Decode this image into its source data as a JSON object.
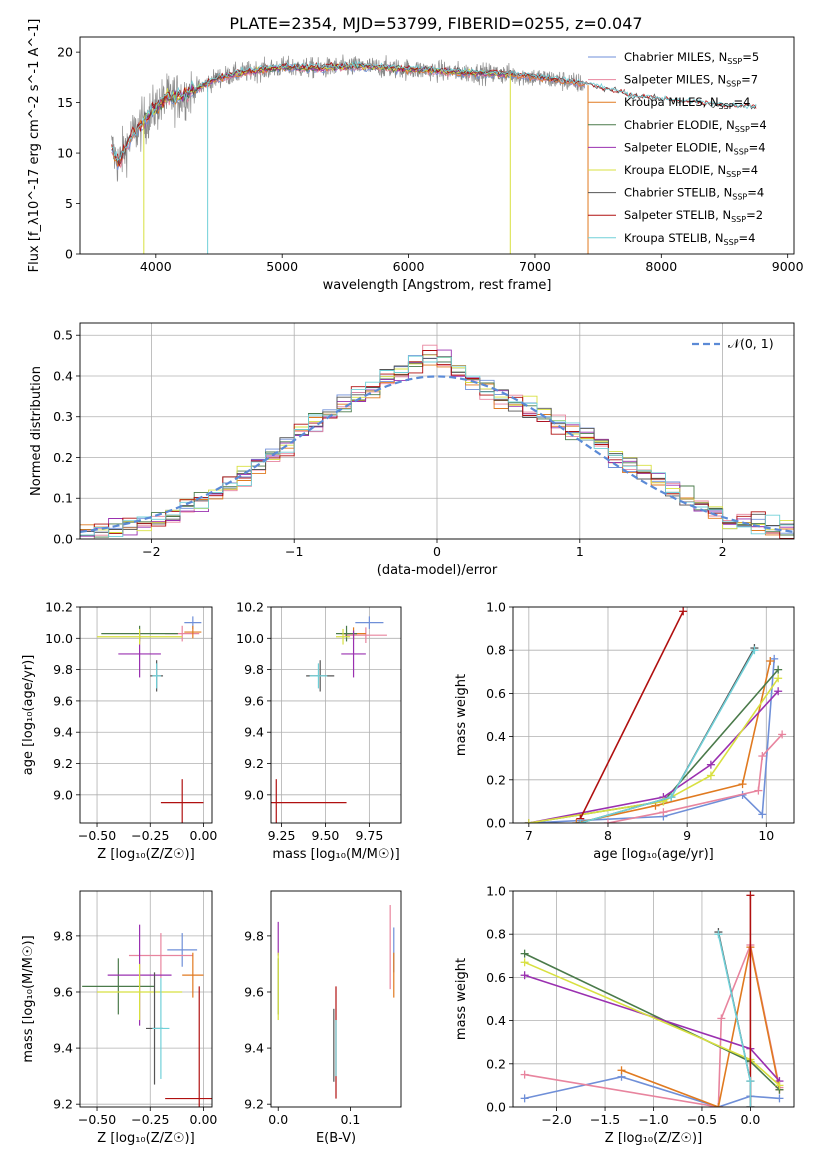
{
  "figure_title": "PLATE=2354, MJD=53799, FIBERID=0255, z=0.047",
  "colors": {
    "Chabrier MILES": "#6f8fd8",
    "Salpeter MILES": "#e8849e",
    "Kroupa MILES": "#e07a20",
    "Chabrier ELODIE": "#4a7a4a",
    "Salpeter ELODIE": "#9a30b0",
    "Kroupa ELODIE": "#d8e040",
    "Chabrier STELIB": "#555555",
    "Salpeter STELIB": "#b01010",
    "Kroupa STELIB": "#70d0d8",
    "normal": "#5b8ad6",
    "grid": "#b0b0b0"
  },
  "chart_data": [
    {
      "id": "spectrum",
      "type": "line",
      "title": "PLATE=2354, MJD=53799, FIBERID=0255, z=0.047",
      "xlabel": "wavelength [Angstrom, rest frame]",
      "ylabel": "Flux [f_λ10^-17 erg cm^-2 s^-1 A^-1]",
      "xlim": [
        3400,
        9050
      ],
      "ylim": [
        0,
        21.5
      ],
      "xticks": [
        4000,
        5000,
        6000,
        7000,
        8000,
        9000
      ],
      "yticks": [
        0,
        5,
        10,
        15,
        20
      ],
      "grid": false,
      "legend_position": "right",
      "legend": [
        {
          "name": "Chabrier MILES",
          "nssp": "5"
        },
        {
          "name": "Salpeter MILES",
          "nssp": "7"
        },
        {
          "name": "Kroupa MILES",
          "nssp": "4"
        },
        {
          "name": "Chabrier ELODIE",
          "nssp": "4"
        },
        {
          "name": "Salpeter ELODIE",
          "nssp": "4"
        },
        {
          "name": "Kroupa ELODIE",
          "nssp": "4"
        },
        {
          "name": "Chabrier STELIB",
          "nssp": "4"
        },
        {
          "name": "Salpeter STELIB",
          "nssp": "2"
        },
        {
          "name": "Kroupa STELIB",
          "nssp": "4"
        }
      ],
      "continuum": {
        "x": [
          3650,
          3700,
          3800,
          3900,
          4000,
          4100,
          4200,
          4300,
          4500,
          4700,
          5000,
          5300,
          5600,
          6000,
          6400,
          6800,
          7200,
          7400,
          7800,
          8200,
          8500,
          8760
        ],
        "y": [
          10.5,
          9,
          11.5,
          13,
          14.5,
          15.5,
          15.6,
          16.2,
          17.5,
          18,
          18.5,
          18.4,
          18.6,
          18.3,
          18,
          17.8,
          17.2,
          16.8,
          15.5,
          15,
          14.6,
          14.5
        ]
      },
      "data_extent": {
        "min": 3650,
        "max": 7400
      },
      "model_extents": {
        "Chabrier MILES": [
          3650,
          7400
        ],
        "Salpeter MILES": [
          3650,
          7400
        ],
        "Kroupa MILES": [
          3650,
          7400
        ],
        "Chabrier ELODIE": [
          3900,
          6800
        ],
        "Salpeter ELODIE": [
          3900,
          6800
        ],
        "Kroupa ELODIE": [
          3900,
          6800
        ],
        "Chabrier STELIB": [
          3650,
          8760
        ],
        "Salpeter STELIB": [
          3650,
          8760
        ],
        "Kroupa STELIB": [
          3650,
          8760
        ]
      },
      "drops": [
        {
          "x": 3905,
          "series": "Kroupa ELODIE"
        },
        {
          "x": 4410,
          "series": "Kroupa STELIB"
        },
        {
          "x": 6805,
          "series": "Kroupa ELODIE"
        },
        {
          "x": 7420,
          "series": "Kroupa MILES"
        }
      ]
    },
    {
      "id": "residuals",
      "type": "line",
      "xlabel": "(data-model)/error",
      "ylabel": "Normed distribution",
      "xlim": [
        -2.5,
        2.5
      ],
      "ylim": [
        0,
        0.53
      ],
      "xticks": [
        -2,
        -1,
        0,
        1,
        2
      ],
      "yticks": [
        0.0,
        0.1,
        0.2,
        0.3,
        0.4,
        0.5
      ],
      "grid": true,
      "legend_position": "top-right",
      "legend": [
        {
          "name": "𝒩(0, 1)",
          "style": "dashed"
        }
      ],
      "bin_width": 0.1,
      "histogram_envelope": {
        "x": [
          -2.5,
          -2.0,
          -1.5,
          -1.0,
          -0.5,
          -0.2,
          0.0,
          0.2,
          0.5,
          1.0,
          1.5,
          2.0,
          2.5
        ],
        "y": [
          0.015,
          0.035,
          0.12,
          0.25,
          0.36,
          0.43,
          0.45,
          0.4,
          0.34,
          0.26,
          0.15,
          0.05,
          0.02
        ]
      }
    },
    {
      "id": "age-vs-Z",
      "type": "scatter",
      "xlabel": "Z [log₁₀(Z/Z☉)]",
      "ylabel": "age [log₁₀(age/yr)]",
      "xlim": [
        -0.58,
        0.04
      ],
      "ylim": [
        8.82,
        10.2
      ],
      "xticks": [
        -0.5,
        -0.25,
        0.0
      ],
      "xtick_labels": [
        "−0.50",
        "−0.25",
        "0.00"
      ],
      "yticks": [
        9.0,
        9.2,
        9.4,
        9.6,
        9.8,
        10.0,
        10.2
      ],
      "grid": true,
      "points": [
        {
          "series": "Chabrier MILES",
          "x": -0.05,
          "y": 10.1,
          "xerr": 0.04,
          "yerr": 0.04
        },
        {
          "series": "Salpeter MILES",
          "x": -0.1,
          "y": 10.03,
          "xerr": 0.08,
          "yerr": 0.05
        },
        {
          "series": "Kroupa MILES",
          "x": -0.05,
          "y": 10.04,
          "xerr": 0.04,
          "yerr": 0.04
        },
        {
          "series": "Chabrier ELODIE",
          "x": -0.3,
          "y": 10.03,
          "xerr": 0.18,
          "yerr": 0.05
        },
        {
          "series": "Salpeter ELODIE",
          "x": -0.3,
          "y": 9.9,
          "xerr": 0.1,
          "yerr": 0.15
        },
        {
          "series": "Kroupa ELODIE",
          "x": -0.3,
          "y": 10.01,
          "xerr": 0.2,
          "yerr": 0.05
        },
        {
          "series": "Chabrier STELIB",
          "x": -0.22,
          "y": 9.76,
          "xerr": 0.03,
          "yerr": 0.1
        },
        {
          "series": "Salpeter STELIB",
          "x": -0.1,
          "y": 8.95,
          "xerr": 0.1,
          "yerr": 0.15
        },
        {
          "series": "Kroupa STELIB",
          "x": -0.22,
          "y": 9.76,
          "xerr": 0.02,
          "yerr": 0.08
        }
      ]
    },
    {
      "id": "age-vs-mass",
      "type": "scatter",
      "xlabel": "mass [log₁₀(M/M☉)]",
      "xlim": [
        9.19,
        9.93
      ],
      "ylim": [
        8.82,
        10.2
      ],
      "xticks": [
        9.25,
        9.5,
        9.75
      ],
      "yticks": [
        9.0,
        9.2,
        9.4,
        9.6,
        9.8,
        10.0,
        10.2
      ],
      "grid": true,
      "points": [
        {
          "series": "Chabrier MILES",
          "x": 9.75,
          "y": 10.1,
          "xerr": 0.08,
          "yerr": 0.04
        },
        {
          "series": "Salpeter MILES",
          "x": 9.73,
          "y": 10.02,
          "xerr": 0.12,
          "yerr": 0.05
        },
        {
          "series": "Kroupa MILES",
          "x": 9.66,
          "y": 10.03,
          "xerr": 0.07,
          "yerr": 0.04
        },
        {
          "series": "Chabrier ELODIE",
          "x": 9.62,
          "y": 10.03,
          "xerr": 0.06,
          "yerr": 0.05
        },
        {
          "series": "Salpeter ELODIE",
          "x": 9.66,
          "y": 9.9,
          "xerr": 0.07,
          "yerr": 0.15
        },
        {
          "series": "Kroupa ELODIE",
          "x": 9.6,
          "y": 10.01,
          "xerr": 0.04,
          "yerr": 0.05
        },
        {
          "series": "Chabrier STELIB",
          "x": 9.47,
          "y": 9.76,
          "xerr": 0.08,
          "yerr": 0.1
        },
        {
          "series": "Salpeter STELIB",
          "x": 9.22,
          "y": 8.95,
          "xerr": 0.4,
          "yerr": 0.15
        },
        {
          "series": "Kroupa STELIB",
          "x": 9.46,
          "y": 9.76,
          "xerr": 0.05,
          "yerr": 0.08
        }
      ]
    },
    {
      "id": "weight-vs-age",
      "type": "line",
      "xlabel": "age [log₁₀(age/yr)]",
      "ylabel": "mass weight",
      "xlim": [
        6.8,
        10.35
      ],
      "ylim": [
        0,
        1.0
      ],
      "xticks": [
        7,
        8,
        9,
        10
      ],
      "yticks": [
        0.0,
        0.2,
        0.4,
        0.6,
        0.8,
        1.0
      ],
      "grid": true,
      "series": [
        {
          "name": "Chabrier MILES",
          "x": [
            7.0,
            8.7,
            9.7,
            9.95,
            10.1
          ],
          "y": [
            0.0,
            0.03,
            0.13,
            0.04,
            0.76
          ]
        },
        {
          "name": "Salpeter MILES",
          "x": [
            8.0,
            8.7,
            9.9,
            9.95,
            10.2
          ],
          "y": [
            0.0,
            0.05,
            0.15,
            0.31,
            0.41
          ]
        },
        {
          "name": "Kroupa MILES",
          "x": [
            7.6,
            8.6,
            9.7,
            10.05
          ],
          "y": [
            0.0,
            0.08,
            0.18,
            0.75
          ]
        },
        {
          "name": "Chabrier ELODIE",
          "x": [
            7.0,
            8.7,
            10.15
          ],
          "y": [
            0.0,
            0.1,
            0.71
          ]
        },
        {
          "name": "Salpeter ELODIE",
          "x": [
            7.0,
            8.7,
            9.3,
            10.15
          ],
          "y": [
            0.0,
            0.12,
            0.27,
            0.61
          ]
        },
        {
          "name": "Kroupa ELODIE",
          "x": [
            7.0,
            8.7,
            9.3,
            10.15
          ],
          "y": [
            0.0,
            0.1,
            0.22,
            0.67
          ]
        },
        {
          "name": "Chabrier STELIB",
          "x": [
            7.65,
            8.8,
            9.85
          ],
          "y": [
            0.0,
            0.12,
            0.81
          ]
        },
        {
          "name": "Salpeter STELIB",
          "x": [
            7.65,
            8.95
          ],
          "y": [
            0.02,
            0.98
          ]
        },
        {
          "name": "Kroupa STELIB",
          "x": [
            7.65,
            8.8,
            9.85
          ],
          "y": [
            0.0,
            0.12,
            0.8
          ]
        }
      ]
    },
    {
      "id": "mass-vs-Z",
      "type": "scatter",
      "xlabel": "Z [log₁₀(Z/Z☉)]",
      "ylabel": "mass [log₁₀(M/M☉)]",
      "xlim": [
        -0.58,
        0.04
      ],
      "ylim": [
        9.19,
        9.96
      ],
      "xticks": [
        -0.5,
        -0.25,
        0.0
      ],
      "xtick_labels": [
        "−0.50",
        "−0.25",
        "0.00"
      ],
      "yticks": [
        9.2,
        9.4,
        9.6,
        9.8
      ],
      "grid": true,
      "points": [
        {
          "series": "Chabrier MILES",
          "x": -0.1,
          "y": 9.75,
          "xerr": 0.07,
          "yerr": 0.06
        },
        {
          "series": "Salpeter MILES",
          "x": -0.2,
          "y": 9.73,
          "xerr": 0.15,
          "yerr": 0.08
        },
        {
          "series": "Kroupa MILES",
          "x": -0.05,
          "y": 9.66,
          "xerr": 0.05,
          "yerr": 0.08
        },
        {
          "series": "Chabrier ELODIE",
          "x": -0.4,
          "y": 9.62,
          "xerr": 0.17,
          "yerr": 0.1
        },
        {
          "series": "Salpeter ELODIE",
          "x": -0.3,
          "y": 9.66,
          "xerr": 0.15,
          "yerr": 0.18
        },
        {
          "series": "Kroupa ELODIE",
          "x": -0.3,
          "y": 9.6,
          "xerr": 0.2,
          "yerr": 0.1
        },
        {
          "series": "Chabrier STELIB",
          "x": -0.23,
          "y": 9.47,
          "xerr": 0.04,
          "yerr": 0.2
        },
        {
          "series": "Salpeter STELIB",
          "x": -0.02,
          "y": 9.22,
          "xerr": 0.16,
          "yerr": 0.4
        },
        {
          "series": "Kroupa STELIB",
          "x": -0.2,
          "y": 9.47,
          "xerr": 0.04,
          "yerr": 0.18
        }
      ]
    },
    {
      "id": "mass-vs-EBV",
      "type": "scatter",
      "xlabel": "E(B-V)",
      "xlim": [
        -0.01,
        0.17
      ],
      "ylim": [
        9.19,
        9.96
      ],
      "xticks": [
        0.0,
        0.1
      ],
      "xtick_labels": [
        "0.0",
        "0.1"
      ],
      "yticks": [
        9.2,
        9.4,
        9.6,
        9.8
      ],
      "grid": false,
      "points": [
        {
          "series": "Chabrier MILES",
          "x": 0.16,
          "y": 9.75,
          "xerr": 0,
          "yerr": 0.08
        },
        {
          "series": "Salpeter MILES",
          "x": 0.155,
          "y": 9.76,
          "xerr": 0,
          "yerr": 0.15
        },
        {
          "series": "Kroupa MILES",
          "x": 0.16,
          "y": 9.66,
          "xerr": 0,
          "yerr": 0.08
        },
        {
          "series": "Chabrier ELODIE",
          "x": 0.0,
          "y": 9.62,
          "xerr": 0,
          "yerr": 0.1
        },
        {
          "series": "Salpeter ELODIE",
          "x": 0.0,
          "y": 9.79,
          "xerr": 0,
          "yerr": 0.06
        },
        {
          "series": "Kroupa ELODIE",
          "x": 0.0,
          "y": 9.62,
          "xerr": 0,
          "yerr": 0.12
        },
        {
          "series": "Chabrier STELIB",
          "x": 0.077,
          "y": 9.41,
          "xerr": 0,
          "yerr": 0.13
        },
        {
          "series": "Salpeter STELIB",
          "x": 0.08,
          "y": 9.42,
          "xerr": 0,
          "yerr": 0.2
        },
        {
          "series": "Kroupa STELIB",
          "x": 0.08,
          "y": 9.4,
          "xerr": 0,
          "yerr": 0.1
        }
      ]
    },
    {
      "id": "weight-vs-Z",
      "type": "line",
      "xlabel": "Z [log₁₀(Z/Z☉)]",
      "ylabel": "mass weight",
      "xlim": [
        -2.45,
        0.45
      ],
      "ylim": [
        0,
        1.0
      ],
      "xticks": [
        -2.0,
        -1.5,
        -1.0,
        -0.5,
        0.0
      ],
      "xtick_labels": [
        "−2.0",
        "−1.5",
        "−1.0",
        "−0.5",
        "0.0"
      ],
      "yticks": [
        0.0,
        0.2,
        0.4,
        0.6,
        0.8,
        1.0
      ],
      "grid": true,
      "series": [
        {
          "name": "Chabrier MILES",
          "x": [
            -2.33,
            -1.33,
            -0.33,
            0.0,
            0.3
          ],
          "y": [
            0.04,
            0.14,
            0.0,
            0.05,
            0.04
          ]
        },
        {
          "name": "Salpeter MILES",
          "x": [
            -2.33,
            -0.33,
            -0.3,
            0.0,
            0.3
          ],
          "y": [
            0.15,
            0.0,
            0.41,
            0.75,
            0.09
          ]
        },
        {
          "name": "Kroupa MILES",
          "x": [
            -1.33,
            -0.33,
            0.0,
            0.3
          ],
          "y": [
            0.17,
            0.0,
            0.74,
            0.08
          ]
        },
        {
          "name": "Chabrier ELODIE",
          "x": [
            -2.33,
            0.0,
            0.3
          ],
          "y": [
            0.71,
            0.21,
            0.08
          ]
        },
        {
          "name": "Salpeter ELODIE",
          "x": [
            -2.33,
            0.0,
            0.3
          ],
          "y": [
            0.61,
            0.27,
            0.12
          ]
        },
        {
          "name": "Kroupa ELODIE",
          "x": [
            -2.33,
            0.0,
            0.3
          ],
          "y": [
            0.67,
            0.22,
            0.1
          ]
        },
        {
          "name": "Chabrier STELIB",
          "x": [
            -0.33,
            0.0,
            0.0
          ],
          "y": [
            0.81,
            0.12,
            0.0
          ]
        },
        {
          "name": "Salpeter STELIB",
          "x": [
            0.0,
            0.0
          ],
          "y": [
            0.98,
            0.0
          ]
        },
        {
          "name": "Kroupa STELIB",
          "x": [
            -0.33,
            0.0,
            0.0
          ],
          "y": [
            0.8,
            0.12,
            0.0
          ]
        }
      ]
    }
  ]
}
